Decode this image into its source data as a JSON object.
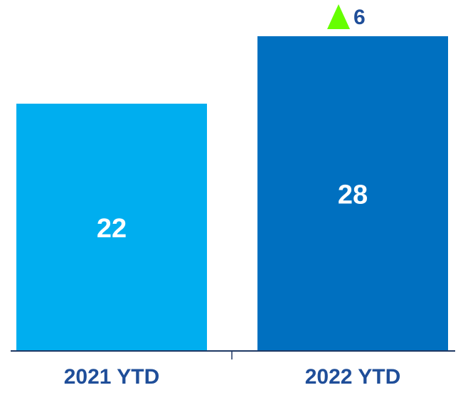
{
  "chart_data": {
    "type": "bar",
    "categories": [
      "2021 YTD",
      "2022 YTD"
    ],
    "values": [
      22,
      28
    ],
    "bar_colors": [
      "#00AEEF",
      "#0070C0"
    ],
    "value_label_color": "#FFFFFF",
    "category_label_color": "#1F4E99",
    "axis_color": "#1F3864",
    "ylim": [
      0,
      28
    ],
    "change": {
      "value": "6",
      "direction": "up",
      "indicator_color": "#66FF00",
      "text_color": "#1F4E99"
    }
  }
}
